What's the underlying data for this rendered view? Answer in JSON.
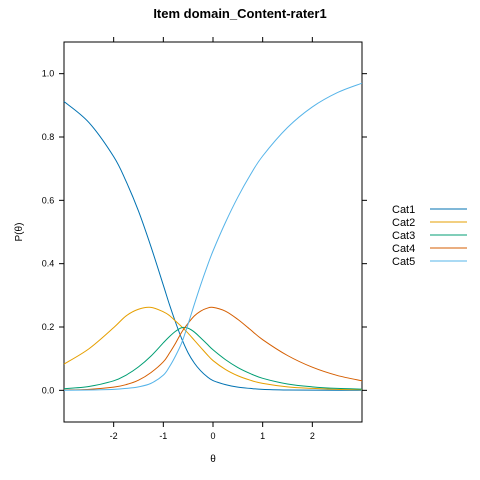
{
  "chart_data": {
    "type": "line",
    "title": "Item domain_Content-rater1",
    "xlabel": "θ",
    "ylabel": "P(θ)",
    "xlim": [
      -3,
      3
    ],
    "ylim": [
      -0.1,
      1.1
    ],
    "x_ticks": [
      -2,
      -1,
      0,
      1,
      2
    ],
    "y_ticks": [
      0.0,
      0.2,
      0.4,
      0.6,
      0.8,
      1.0
    ],
    "x_tick_labels": [
      "-2",
      "-1",
      "0",
      "1",
      "2"
    ],
    "y_tick_labels": [
      "0.0",
      "0.2",
      "0.4",
      "0.6",
      "0.8",
      "1.0"
    ],
    "grid": false,
    "legend_position": "right",
    "x": [
      -3.0,
      -2.5,
      -2.0,
      -1.75,
      -1.5,
      -1.25,
      -1.0,
      -0.875,
      -0.75,
      -0.625,
      -0.5,
      -0.375,
      -0.25,
      -0.125,
      0.0,
      0.25,
      0.5,
      0.75,
      1.0,
      1.5,
      2.0,
      2.5,
      3.0
    ],
    "series": [
      {
        "name": "Cat1",
        "color": "#0072B2",
        "values": [
          0.912,
          0.846,
          0.738,
          0.66,
          0.566,
          0.454,
          0.332,
          0.27,
          0.213,
          0.161,
          0.118,
          0.086,
          0.062,
          0.044,
          0.031,
          0.018,
          0.01,
          0.006,
          0.003,
          0.001,
          0.0005,
          0.0002,
          0.0001
        ]
      },
      {
        "name": "Cat2",
        "color": "#E69F00",
        "values": [
          0.083,
          0.131,
          0.198,
          0.235,
          0.256,
          0.262,
          0.248,
          0.236,
          0.218,
          0.2,
          0.18,
          0.158,
          0.136,
          0.114,
          0.094,
          0.066,
          0.046,
          0.032,
          0.022,
          0.011,
          0.006,
          0.003,
          0.002
        ]
      },
      {
        "name": "Cat3",
        "color": "#009E73",
        "values": [
          0.005,
          0.012,
          0.03,
          0.048,
          0.074,
          0.108,
          0.15,
          0.17,
          0.187,
          0.198,
          0.196,
          0.184,
          0.166,
          0.147,
          0.128,
          0.097,
          0.072,
          0.053,
          0.038,
          0.02,
          0.011,
          0.006,
          0.004
        ]
      },
      {
        "name": "Cat4",
        "color": "#D55E00",
        "values": [
          0.001,
          0.003,
          0.01,
          0.018,
          0.032,
          0.056,
          0.09,
          0.118,
          0.15,
          0.185,
          0.212,
          0.235,
          0.25,
          0.259,
          0.262,
          0.25,
          0.224,
          0.192,
          0.16,
          0.11,
          0.073,
          0.047,
          0.03
        ]
      },
      {
        "name": "Cat5",
        "color": "#56B4E9",
        "values": [
          0.0001,
          0.001,
          0.003,
          0.006,
          0.011,
          0.022,
          0.048,
          0.075,
          0.11,
          0.152,
          0.21,
          0.272,
          0.332,
          0.388,
          0.44,
          0.53,
          0.61,
          0.68,
          0.74,
          0.83,
          0.895,
          0.94,
          0.97
        ]
      }
    ]
  }
}
